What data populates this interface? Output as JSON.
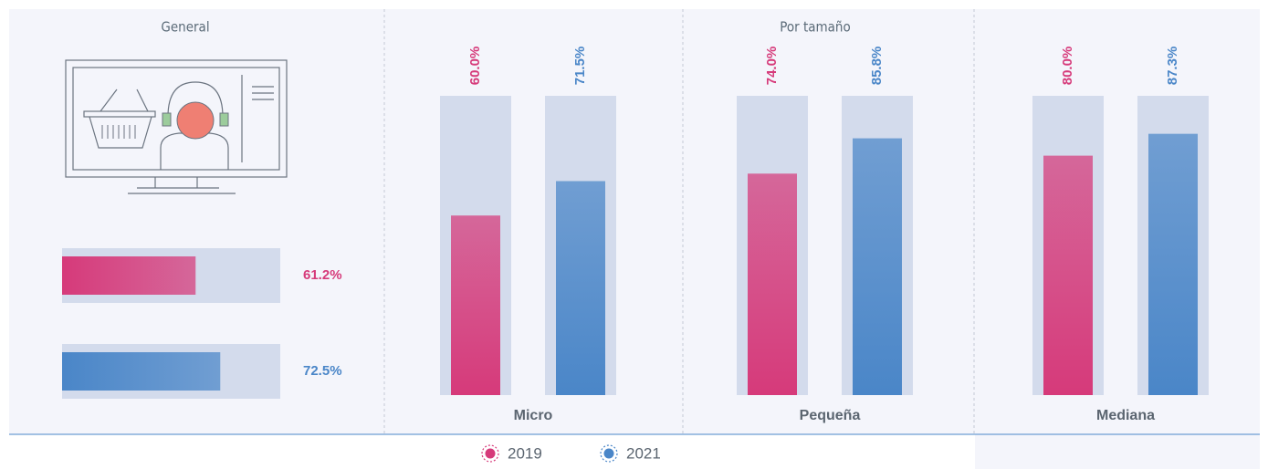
{
  "chart_data": [
    {
      "type": "hbar",
      "title": "General",
      "values": [
        61.2,
        72.5
      ],
      "value_labels": [
        "61.2%",
        "72.5%"
      ],
      "colors": [
        "#d63a7a",
        "#4a86c8"
      ],
      "xlim": [
        0,
        100
      ]
    },
    {
      "type": "bar",
      "title": "Por tamaño",
      "categories": [
        "Micro",
        "Pequeña",
        "Mediana"
      ],
      "series": [
        {
          "name": "2019",
          "color": "#d63a7a",
          "values": [
            60.0,
            74.0,
            80.0
          ],
          "value_labels": [
            "60.0%",
            "74.0%",
            "80.0%"
          ]
        },
        {
          "name": "2021",
          "color": "#4a86c8",
          "values": [
            71.5,
            85.8,
            87.3
          ],
          "value_labels": [
            "71.5%",
            "85.8%",
            "87.3%"
          ]
        }
      ],
      "ylim": [
        0,
        100
      ]
    }
  ]
}
